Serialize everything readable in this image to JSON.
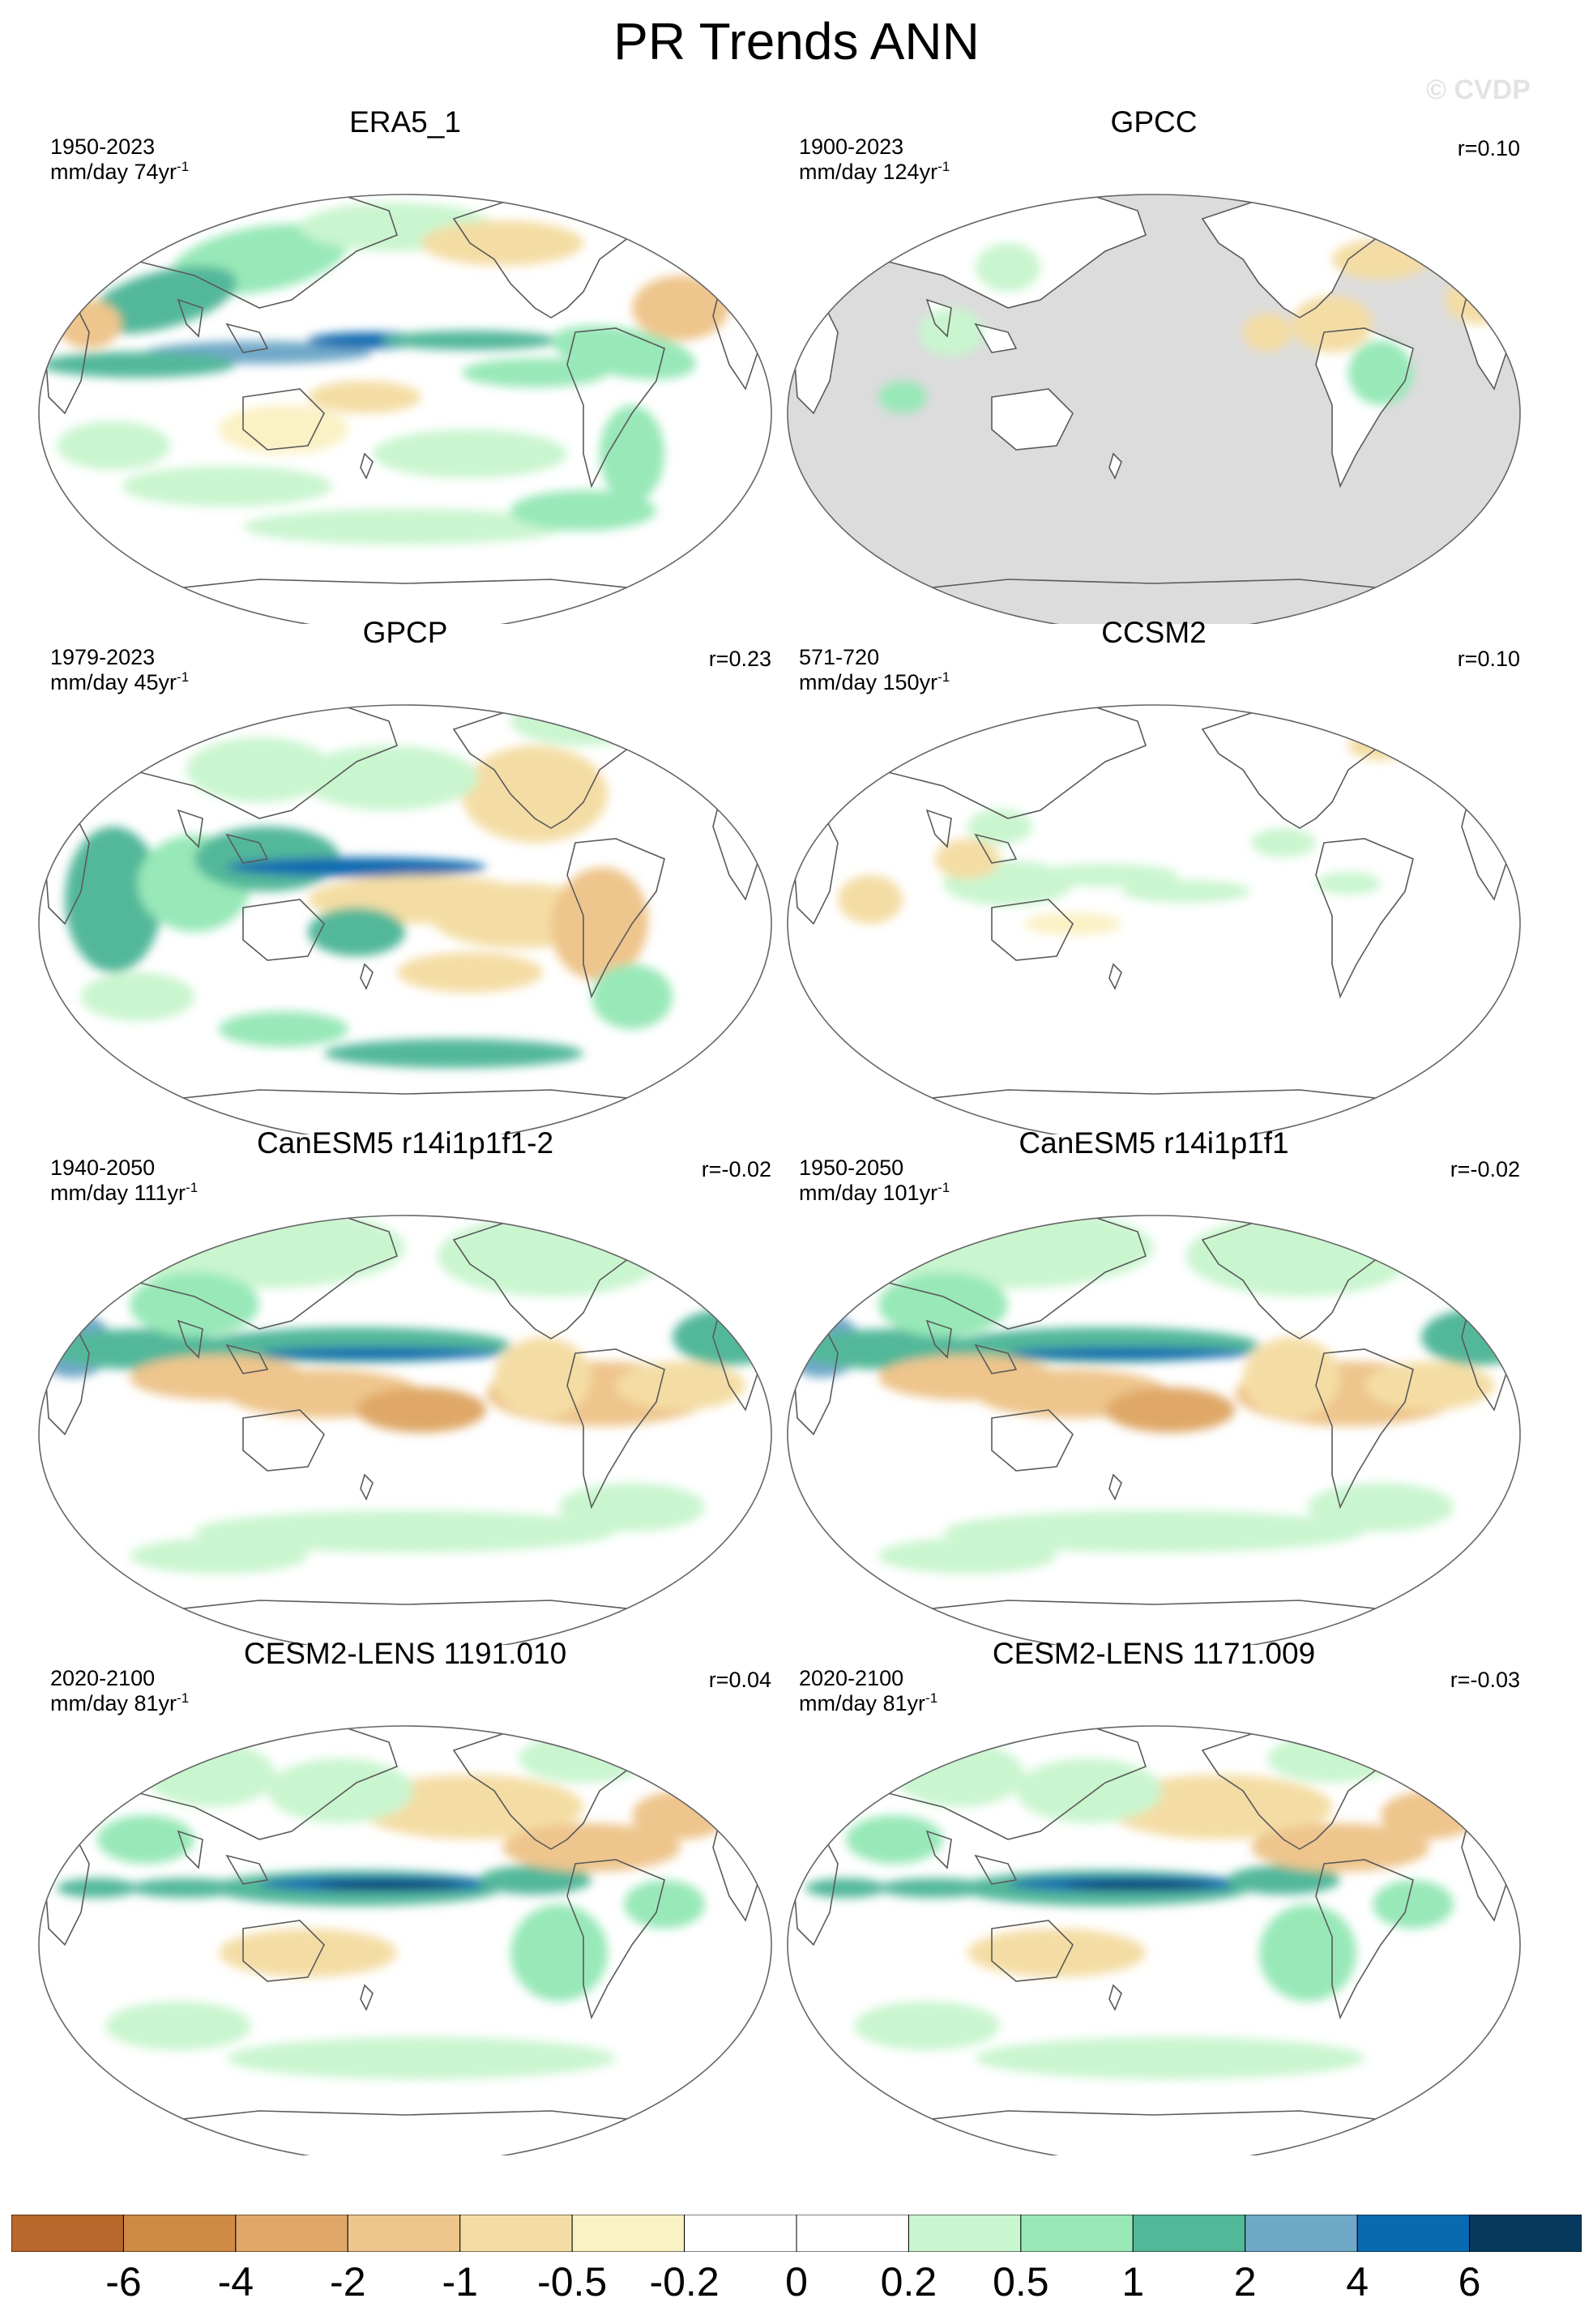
{
  "title": "PR Trends ANN",
  "watermark": "© CVDP",
  "panels": [
    {
      "title": "ERA5_1",
      "period": "1950-2023",
      "units": "mm/day 74yr",
      "units_sup": "-1",
      "corr": "",
      "style": "era5"
    },
    {
      "title": "GPCC",
      "period": "1900-2023",
      "units": "mm/day 124yr",
      "units_sup": "-1",
      "corr": "r=0.10",
      "style": "gpcc"
    },
    {
      "title": "GPCP",
      "period": "1979-2023",
      "units": "mm/day 45yr",
      "units_sup": "-1",
      "corr": "r=0.23",
      "style": "gpcp"
    },
    {
      "title": "CCSM2",
      "period": "571-720",
      "units": "mm/day 150yr",
      "units_sup": "-1",
      "corr": "r=0.10",
      "style": "ccsm2"
    },
    {
      "title": "CanESM5 r14i1p1f1-2",
      "period": "1940-2050",
      "units": "mm/day 111yr",
      "units_sup": "-1",
      "corr": "r=-0.02",
      "style": "canesm"
    },
    {
      "title": "CanESM5 r14i1p1f1",
      "period": "1950-2050",
      "units": "mm/day 101yr",
      "units_sup": "-1",
      "corr": "r=-0.02",
      "style": "canesm"
    },
    {
      "title": "CESM2-LENS 1191.010",
      "period": "2020-2100",
      "units": "mm/day 81yr",
      "units_sup": "-1",
      "corr": "r=0.04",
      "style": "cesm"
    },
    {
      "title": "CESM2-LENS 1171.009",
      "period": "2020-2100",
      "units": "mm/day 81yr",
      "units_sup": "-1",
      "corr": "r=-0.03",
      "style": "cesm"
    }
  ],
  "colorbar": {
    "colors": [
      "#b8682a",
      "#cf8a45",
      "#dfa868",
      "#eec58c",
      "#f4dda4",
      "#faf1c4",
      "#ffffff",
      "#ffffff",
      "#c9f5cf",
      "#98e8b8",
      "#52b89a",
      "#70a8c8",
      "#0a6ab0",
      "#06385e"
    ],
    "labels": [
      "-6",
      "-4",
      "-2",
      "-1",
      "-0.5",
      "-0.2",
      "0",
      "0.2",
      "0.5",
      "1",
      "2",
      "4",
      "6"
    ]
  },
  "map_colors": {
    "ocean_mask": "#dcdcdc",
    "coast": "#5a5a5a"
  }
}
